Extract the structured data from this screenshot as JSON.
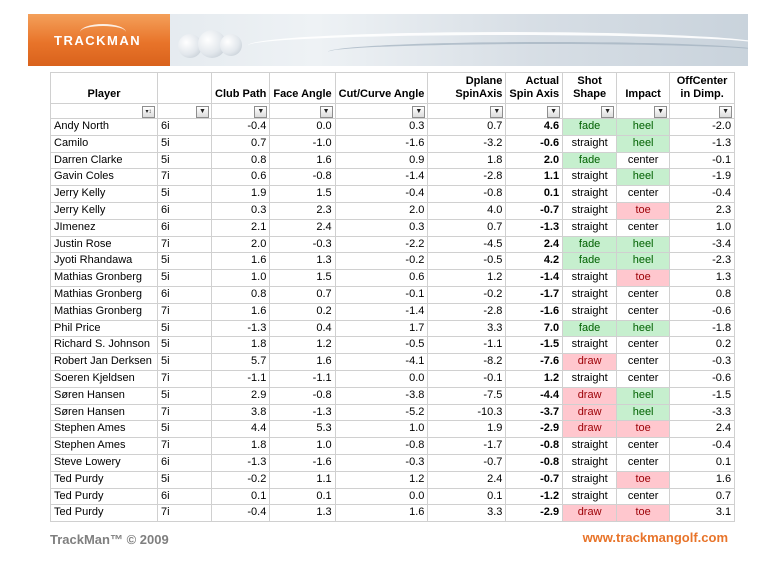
{
  "banner": {
    "logo_text": "TRACKMAN"
  },
  "table": {
    "headers": [
      "Player",
      "",
      "Club Path",
      "Face Angle",
      "Cut/Curve Angle",
      "Dplane\nSpinAxis",
      "Actual\nSpin Axis",
      "Shot\nShape",
      "Impact",
      "OffCenter\nin Dimp."
    ],
    "rows": [
      [
        "Andy North",
        "6i",
        "-0.4",
        "0.0",
        "0.3",
        "0.7",
        "4.6",
        "fade",
        "heel",
        "-2.0"
      ],
      [
        "Camilo",
        "5i",
        "0.7",
        "-1.0",
        "-1.6",
        "-3.2",
        "-0.6",
        "straight",
        "heel",
        "-1.3"
      ],
      [
        "Darren Clarke",
        "5i",
        "0.8",
        "1.6",
        "0.9",
        "1.8",
        "2.0",
        "fade",
        "center",
        "-0.1"
      ],
      [
        "Gavin Coles",
        "7i",
        "0.6",
        "-0.8",
        "-1.4",
        "-2.8",
        "1.1",
        "straight",
        "heel",
        "-1.9"
      ],
      [
        "Jerry Kelly",
        "5i",
        "1.9",
        "1.5",
        "-0.4",
        "-0.8",
        "0.1",
        "straight",
        "center",
        "-0.4"
      ],
      [
        "Jerry Kelly",
        "6i",
        "0.3",
        "2.3",
        "2.0",
        "4.0",
        "-0.7",
        "straight",
        "toe",
        "2.3"
      ],
      [
        "JImenez",
        "6i",
        "2.1",
        "2.4",
        "0.3",
        "0.7",
        "-1.3",
        "straight",
        "center",
        "1.0"
      ],
      [
        "Justin Rose",
        "7i",
        "2.0",
        "-0.3",
        "-2.2",
        "-4.5",
        "2.4",
        "fade",
        "heel",
        "-3.4"
      ],
      [
        "Jyoti Rhandawa",
        "5i",
        "1.6",
        "1.3",
        "-0.2",
        "-0.5",
        "4.2",
        "fade",
        "heel",
        "-2.3"
      ],
      [
        "Mathias Gronberg",
        "5i",
        "1.0",
        "1.5",
        "0.6",
        "1.2",
        "-1.4",
        "straight",
        "toe",
        "1.3"
      ],
      [
        "Mathias Gronberg",
        "6i",
        "0.8",
        "0.7",
        "-0.1",
        "-0.2",
        "-1.7",
        "straight",
        "center",
        "0.8"
      ],
      [
        "Mathias Gronberg",
        "7i",
        "1.6",
        "0.2",
        "-1.4",
        "-2.8",
        "-1.6",
        "straight",
        "center",
        "-0.6"
      ],
      [
        "Phil Price",
        "5i",
        "-1.3",
        "0.4",
        "1.7",
        "3.3",
        "7.0",
        "fade",
        "heel",
        "-1.8"
      ],
      [
        "Richard S. Johnson",
        "5i",
        "1.8",
        "1.2",
        "-0.5",
        "-1.1",
        "-1.5",
        "straight",
        "center",
        "0.2"
      ],
      [
        "Robert Jan Derksen",
        "5i",
        "5.7",
        "1.6",
        "-4.1",
        "-8.2",
        "-7.6",
        "draw",
        "center",
        "-0.3"
      ],
      [
        "Soeren Kjeldsen",
        "7i",
        "-1.1",
        "-1.1",
        "0.0",
        "-0.1",
        "1.2",
        "straight",
        "center",
        "-0.6"
      ],
      [
        "Søren Hansen",
        "5i",
        "2.9",
        "-0.8",
        "-3.8",
        "-7.5",
        "-4.4",
        "draw",
        "heel",
        "-1.5"
      ],
      [
        "Søren Hansen",
        "7i",
        "3.8",
        "-1.3",
        "-5.2",
        "-10.3",
        "-3.7",
        "draw",
        "heel",
        "-3.3"
      ],
      [
        "Stephen Ames",
        "5i",
        "4.4",
        "5.3",
        "1.0",
        "1.9",
        "-2.9",
        "draw",
        "toe",
        "2.4"
      ],
      [
        "Stephen Ames",
        "7i",
        "1.8",
        "1.0",
        "-0.8",
        "-1.7",
        "-0.8",
        "straight",
        "center",
        "-0.4"
      ],
      [
        "Steve Lowery",
        "6i",
        "-1.3",
        "-1.6",
        "-0.3",
        "-0.7",
        "-0.8",
        "straight",
        "center",
        "0.1"
      ],
      [
        "Ted Purdy",
        "5i",
        "-0.2",
        "1.1",
        "1.2",
        "2.4",
        "-0.7",
        "straight",
        "toe",
        "1.6"
      ],
      [
        "Ted Purdy",
        "6i",
        "0.1",
        "0.1",
        "0.0",
        "0.1",
        "-1.2",
        "straight",
        "center",
        "0.7"
      ],
      [
        "Ted Purdy",
        "7i",
        "-0.4",
        "1.3",
        "1.6",
        "3.3",
        "-2.9",
        "draw",
        "toe",
        "3.1"
      ]
    ]
  },
  "colors": {
    "good": "#c6efce",
    "bad": "#ffc7ce",
    "accent": "#e8742a"
  },
  "footer": {
    "copyright": "TrackMan™ © 2009",
    "url": "www.trackmangolf.com"
  }
}
